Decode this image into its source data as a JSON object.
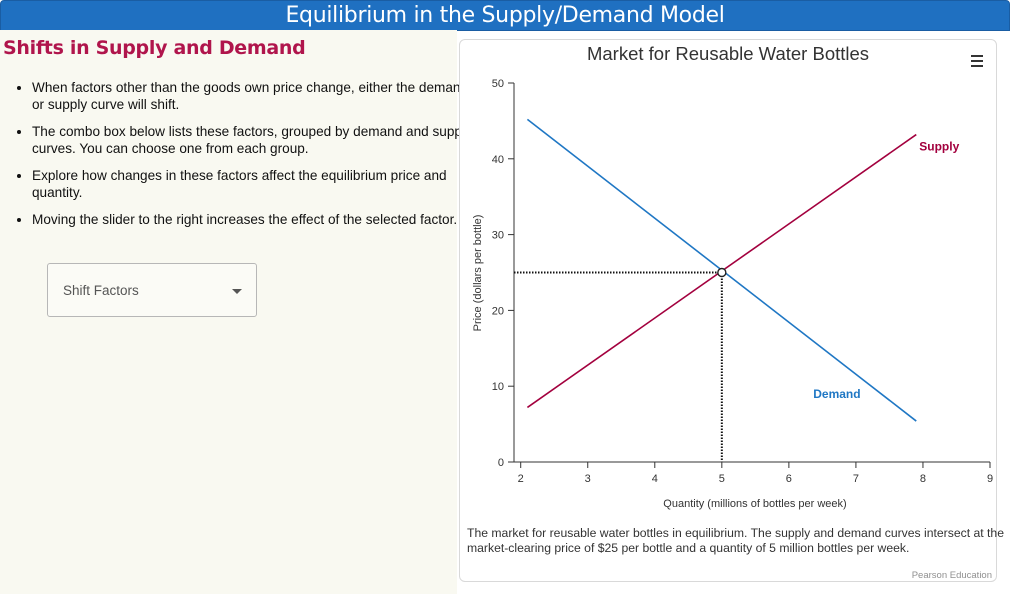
{
  "header": {
    "title": "Equilibrium in the Supply/Demand Model"
  },
  "lesson": {
    "section_title": "Shifts in Supply and Demand",
    "bullets": [
      "When factors other than the goods own price change, either the demand or supply curve will shift.",
      "The combo box below lists these factors, grouped by demand and supply curves. You can choose one from each group.",
      "Explore how changes in these factors affect the equilibrium price and quantity.",
      "Moving the slider to the right increases the effect of the selected factor."
    ],
    "shift_select": {
      "placeholder": "Shift Factors",
      "icon": "chevron-down-icon"
    }
  },
  "chart_menu_icon": "hamburger-menu-icon",
  "chart_data": {
    "type": "line",
    "title": "Market for Reusable Water Bottles",
    "xlabel": "Quantity (millions of bottles per week)",
    "ylabel": "Price (dollars per bottle)",
    "xlim": [
      1.9,
      9
    ],
    "ylim": [
      0,
      50
    ],
    "x_ticks": [
      2,
      3,
      4,
      5,
      6,
      7,
      8,
      9
    ],
    "y_ticks": [
      0,
      10,
      20,
      30,
      40,
      50
    ],
    "grid": false,
    "legend": "none",
    "series": [
      {
        "name": "Supply",
        "color": "#a3003e",
        "x": [
          2.1,
          7.9
        ],
        "y": [
          7.2,
          43.2
        ]
      },
      {
        "name": "Demand",
        "color": "#1f77c4",
        "x": [
          2.1,
          7.9
        ],
        "y": [
          45.2,
          5.4
        ]
      }
    ],
    "equilibrium": {
      "x": 5,
      "y": 25
    }
  },
  "caption": "The market for reusable water bottles in equilibrium. The supply and demand curves intersect at the market-clearing price of $25 per bottle and a quantity of 5 million bottles per week.",
  "credits": "Pearson Education"
}
